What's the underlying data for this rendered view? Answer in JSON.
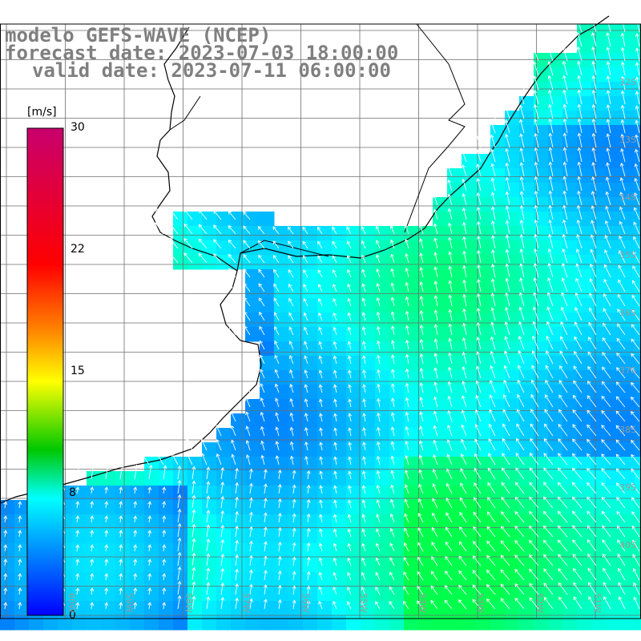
{
  "header": {
    "line1": "modelo GEFS-WAVE (NCEP)",
    "line2": "forecast date: 2023-07-03 18:00:00",
    "line3": "valid date: 2023-07-11 06:00:00"
  },
  "colorbar": {
    "unit": "[m/s]",
    "ticks": [
      "30",
      "22",
      "15",
      "8",
      "0"
    ],
    "colors": [
      "#c8006e",
      "#ff0000",
      "#ff8a00",
      "#ffff00",
      "#00c800",
      "#00ffff",
      "#0000ff"
    ]
  },
  "lat_labels": [
    "32S",
    "33S",
    "34S",
    "35S",
    "36S",
    "37S",
    "38S",
    "39S",
    "40S"
  ],
  "lon_labels": [
    "60W",
    "59W",
    "58W",
    "57W",
    "56W",
    "55W",
    "54W",
    "53W",
    "52W",
    "51W"
  ]
}
